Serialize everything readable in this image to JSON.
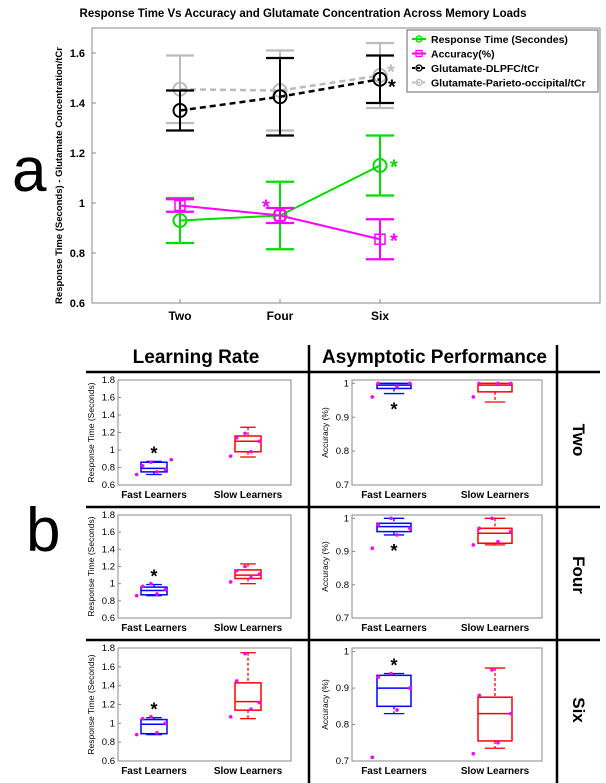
{
  "title": "Response Time Vs Accuracy and Glutamate Concentration Across Memory Loads",
  "panel_a_letter": "a",
  "panel_b_letter": "b",
  "col_headers": [
    "Learning Rate",
    "Asymptotic Performance"
  ],
  "row_headers": [
    "Two",
    "Four",
    "Six"
  ],
  "colors": {
    "response_time": "#00dd00",
    "accuracy": "#ff00ff",
    "glu_dlpfc": "#000000",
    "glu_po": "#bbbbbb",
    "fast_box": "#0000ff",
    "slow_box": "#ff0000",
    "points": "#ff00ff"
  },
  "chart_data": [
    {
      "type": "line",
      "title": "Response Time Vs Accuracy and Glutamate Concentration Across Memory Loads",
      "xlabel": "",
      "ylabel": "Response Time (Seconds) - Glutamate Concentration/tCr",
      "categories": [
        "Two",
        "Four",
        "Six"
      ],
      "ylim": [
        0.6,
        1.7
      ],
      "yticks": [
        "0.6",
        "0.8",
        "1",
        "1.2",
        "1.4",
        "1.6"
      ],
      "legend_position": "top-right",
      "series": [
        {
          "name": "Response Time (Secondes)",
          "key": "response_time",
          "marker": "circle",
          "dash": "",
          "values": [
            0.93,
            0.95,
            1.15
          ],
          "err": [
            0.09,
            0.135,
            0.12
          ],
          "sig": [
            false,
            false,
            true
          ]
        },
        {
          "name": "Accuracy(%)",
          "key": "accuracy",
          "marker": "square",
          "dash": "",
          "values": [
            0.99,
            0.95,
            0.855
          ],
          "err": [
            0.025,
            0.03,
            0.08
          ],
          "sig": [
            false,
            true,
            true
          ]
        },
        {
          "name": "Glutamate-DLPFC/tCr",
          "key": "glu_dlpfc",
          "marker": "circle",
          "dash": "6,4",
          "values": [
            1.37,
            1.425,
            1.495
          ],
          "err": [
            0.08,
            0.155,
            0.095
          ],
          "sig": [
            false,
            false,
            true
          ]
        },
        {
          "name": "Glutamate-Parieto-occipital/tCr",
          "key": "glu_po",
          "marker": "circle",
          "dash": "6,4",
          "values": [
            1.455,
            1.45,
            1.51
          ],
          "err": [
            0.135,
            0.16,
            0.13
          ],
          "sig": [
            false,
            false,
            true
          ]
        }
      ]
    },
    {
      "type": "box",
      "row": "Two",
      "column": "Learning Rate",
      "ylabel": "Response Time (Seconds)",
      "ylim": [
        0.6,
        1.8
      ],
      "yticks": [
        "0.6",
        "0.8",
        "1",
        "1.2",
        "1.4",
        "1.6",
        "1.8"
      ],
      "categories": [
        "Fast Learners",
        "Slow Learners"
      ],
      "boxes": [
        {
          "min": 0.72,
          "q1": 0.75,
          "median": 0.79,
          "q3": 0.86,
          "max": 0.87,
          "points": [
            0.72,
            0.75,
            0.78,
            0.82,
            0.86,
            0.89
          ],
          "sig": true
        },
        {
          "min": 0.92,
          "q1": 0.98,
          "median": 1.1,
          "q3": 1.16,
          "max": 1.26,
          "points": [
            0.93,
            0.98,
            1.1,
            1.14,
            1.19
          ],
          "sig": false
        }
      ]
    },
    {
      "type": "box",
      "row": "Two",
      "column": "Asymptotic Performance",
      "ylabel": "Accuracy (%)",
      "ylim": [
        0.7,
        1.01
      ],
      "yticks": [
        "0.7",
        "0.8",
        "0.9",
        "1"
      ],
      "categories": [
        "Fast Learners",
        "Slow Learners"
      ],
      "boxes": [
        {
          "min": 0.97,
          "q1": 0.985,
          "median": 0.995,
          "q3": 1.0,
          "max": 1.0,
          "points": [
            0.96,
            0.99,
            1.0,
            1.0
          ],
          "sig": true
        },
        {
          "min": 0.945,
          "q1": 0.975,
          "median": 0.995,
          "q3": 1.0,
          "max": 1.0,
          "points": [
            0.96,
            1.0,
            1.0,
            1.0
          ],
          "sig": false
        }
      ]
    },
    {
      "type": "box",
      "row": "Four",
      "column": "Learning Rate",
      "ylabel": "Response Time (Seconds)",
      "ylim": [
        0.6,
        1.8
      ],
      "yticks": [
        "0.6",
        "0.8",
        "1",
        "1.2",
        "1.4",
        "1.6",
        "1.8"
      ],
      "categories": [
        "Fast Learners",
        "Slow Learners"
      ],
      "boxes": [
        {
          "min": 0.86,
          "q1": 0.87,
          "median": 0.92,
          "q3": 0.96,
          "max": 0.99,
          "points": [
            0.86,
            0.88,
            0.93,
            0.97,
            1.0
          ],
          "sig": true
        },
        {
          "min": 1.0,
          "q1": 1.06,
          "median": 1.1,
          "q3": 1.16,
          "max": 1.23,
          "points": [
            1.02,
            1.07,
            1.11,
            1.15,
            1.2
          ],
          "sig": false
        }
      ]
    },
    {
      "type": "box",
      "row": "Four",
      "column": "Asymptotic Performance",
      "ylabel": "Accuracy (%)",
      "ylim": [
        0.7,
        1.01
      ],
      "yticks": [
        "0.7",
        "0.8",
        "0.9",
        "1"
      ],
      "categories": [
        "Fast Learners",
        "Slow Learners"
      ],
      "boxes": [
        {
          "min": 0.95,
          "q1": 0.96,
          "median": 0.975,
          "q3": 0.985,
          "max": 1.0,
          "points": [
            0.91,
            0.95,
            0.97,
            0.98,
            1.0
          ],
          "sig": true
        },
        {
          "min": 0.92,
          "q1": 0.925,
          "median": 0.955,
          "q3": 0.97,
          "max": 1.0,
          "points": [
            0.92,
            0.93,
            0.96,
            0.97,
            1.0
          ],
          "sig": false
        }
      ]
    },
    {
      "type": "box",
      "row": "Six",
      "column": "Learning Rate",
      "ylabel": "Response Time (Seconds)",
      "ylim": [
        0.6,
        1.8
      ],
      "yticks": [
        "0.6",
        "0.8",
        "1",
        "1.2",
        "1.4",
        "1.6",
        "1.8"
      ],
      "categories": [
        "Fast Learners",
        "Slow Learners"
      ],
      "boxes": [
        {
          "min": 0.88,
          "q1": 0.89,
          "median": 0.99,
          "q3": 1.04,
          "max": 1.06,
          "points": [
            0.88,
            0.9,
            1.0,
            1.05,
            1.07
          ],
          "sig": true
        },
        {
          "min": 1.05,
          "q1": 1.14,
          "median": 1.23,
          "q3": 1.43,
          "max": 1.75,
          "points": [
            1.07,
            1.15,
            1.22,
            1.45,
            1.74
          ],
          "sig": false
        }
      ]
    },
    {
      "type": "box",
      "row": "Six",
      "column": "Asymptotic Performance",
      "ylabel": "Accuracy (%)",
      "ylim": [
        0.7,
        1.01
      ],
      "yticks": [
        "0.7",
        "0.8",
        "0.9",
        "1"
      ],
      "categories": [
        "Fast Learners",
        "Slow Learners"
      ],
      "boxes": [
        {
          "min": 0.83,
          "q1": 0.85,
          "median": 0.9,
          "q3": 0.935,
          "max": 0.94,
          "points": [
            0.71,
            0.84,
            0.9,
            0.93,
            0.94
          ],
          "sig": true
        },
        {
          "min": 0.735,
          "q1": 0.755,
          "median": 0.83,
          "q3": 0.875,
          "max": 0.955,
          "points": [
            0.72,
            0.75,
            0.83,
            0.88,
            0.95
          ],
          "sig": false
        }
      ]
    }
  ]
}
